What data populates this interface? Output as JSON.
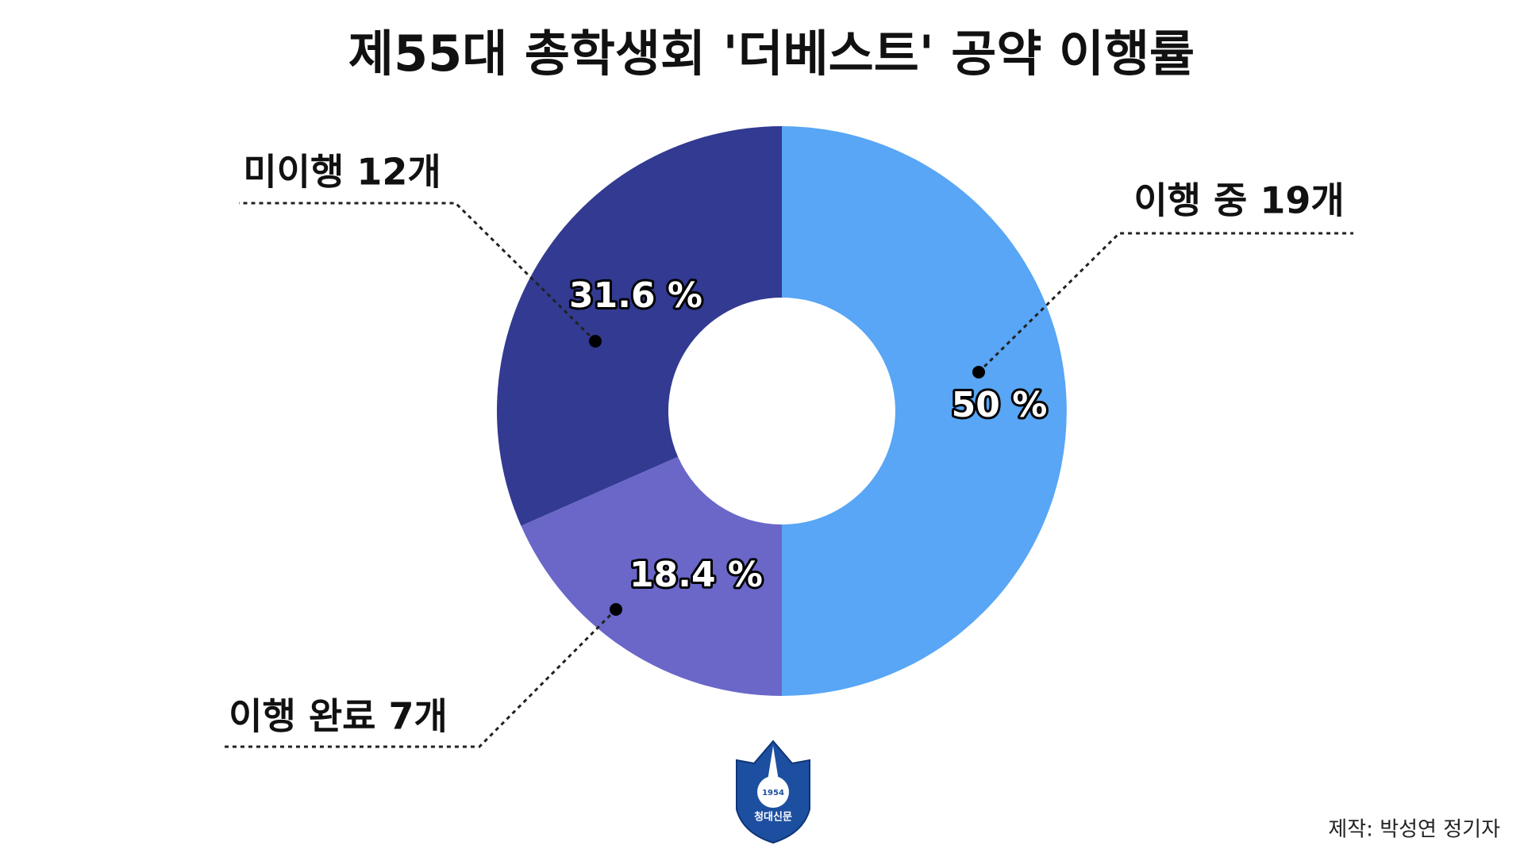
{
  "chart_data": {
    "type": "donut",
    "title": "제55대 총학생회 '더베스트' 공약 이행률",
    "categories": [
      "이행 중 19개",
      "이행 완료 7개",
      "미이행 12개"
    ],
    "values": [
      50,
      18.4,
      31.6
    ],
    "value_labels": [
      "50 %",
      "18.4 %",
      "31.6 %"
    ],
    "colors": [
      "#58a6f5",
      "#6a67c9",
      "#323a91"
    ]
  },
  "credit": "제작: 박성연 정기자",
  "logo": {
    "year": "1954",
    "name": "청대신문"
  }
}
